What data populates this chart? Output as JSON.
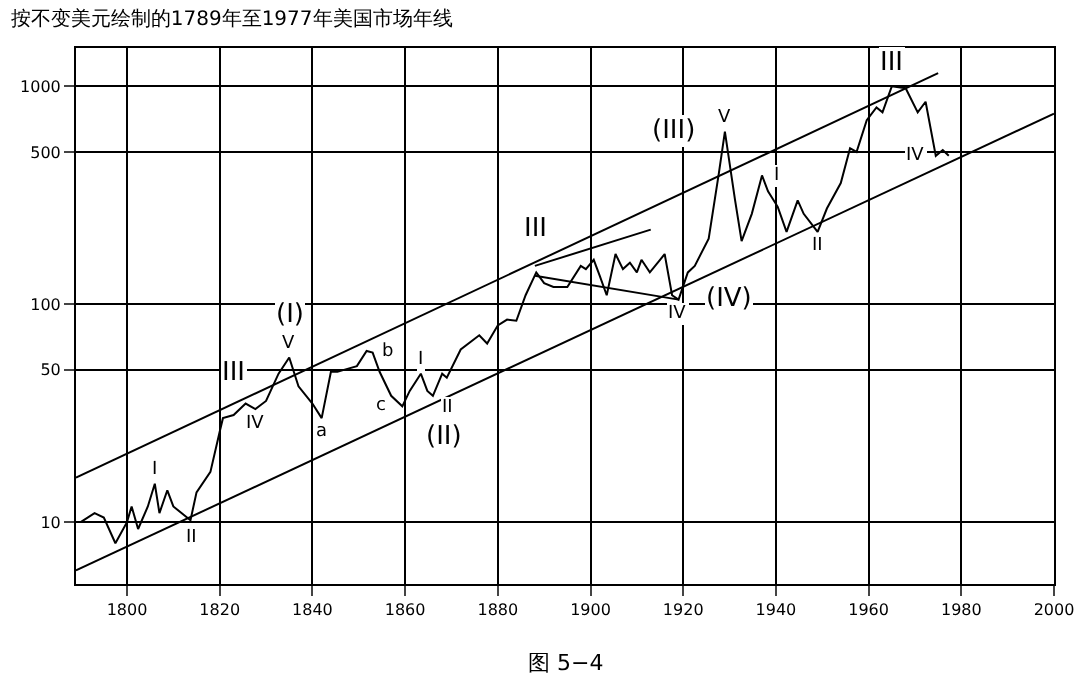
{
  "chart_data": {
    "type": "line",
    "title": "按不变美元绘制的1789年至1977年美国市场年线",
    "xlim": [
      1789,
      2000
    ],
    "xticks": [
      1800,
      1820,
      1840,
      1860,
      1880,
      1900,
      1920,
      1940,
      1960,
      1980,
      2000
    ],
    "ylim": [
      5.2,
      1500
    ],
    "yticks": [
      10,
      50,
      100,
      500,
      1000
    ],
    "log": true,
    "grid": true,
    "marker": "none",
    "line_style": "solid",
    "series": [
      {
        "color": "#000000",
        "x": [
          1790,
          1793,
          1795,
          1797.5,
          1800,
          1801,
          1802.4,
          1804.5,
          1806,
          1807,
          1808.7,
          1810,
          1813.7,
          1815,
          1818,
          1820,
          1820.7,
          1823,
          1825.6,
          1827.7,
          1830,
          1832.7,
          1835,
          1837,
          1840,
          1842,
          1844,
          1845.4,
          1846.8,
          1849.6,
          1851.7,
          1853,
          1854.5,
          1857,
          1859.4,
          1861,
          1863.4,
          1864.8,
          1866,
          1868,
          1869,
          1872,
          1876,
          1877.7,
          1880,
          1882,
          1884,
          1886,
          1888.3,
          1890,
          1892,
          1895,
          1897.9,
          1899,
          1900.7,
          1902,
          1903.5,
          1905.4,
          1907,
          1908.5,
          1910,
          1911,
          1912.8,
          1915,
          1916,
          1917.6,
          1919,
          1921,
          1922.5,
          1925.5,
          1927.7,
          1929,
          1931.2,
          1932.6,
          1934.8,
          1937,
          1938.3,
          1940.4,
          1942.3,
          1944.7,
          1946,
          1949,
          1951,
          1954,
          1956,
          1957.4,
          1959.6,
          1961.7,
          1963,
          1965,
          1968,
          1970.6,
          1972.3,
          1974.5,
          1976,
          1977.3
        ],
        "values": [
          10,
          11,
          10.5,
          8,
          10,
          11.8,
          9.3,
          11.8,
          15,
          11,
          14,
          11.8,
          10.2,
          13.7,
          17,
          26,
          30,
          31,
          35,
          33,
          36,
          48,
          57,
          42,
          35,
          30,
          49,
          49,
          50,
          52,
          61,
          60,
          49,
          38,
          34,
          40,
          48,
          40,
          38,
          48,
          46,
          62,
          72,
          66,
          80,
          85,
          84,
          110,
          140,
          125,
          120,
          120,
          150,
          145,
          160,
          135,
          110,
          170,
          145,
          155,
          140,
          160,
          140,
          160,
          170,
          110,
          105,
          140,
          150,
          200,
          400,
          620,
          300,
          195,
          260,
          390,
          330,
          280,
          215,
          300,
          260,
          215,
          275,
          360,
          520,
          500,
          700,
          800,
          760,
          1000,
          980,
          760,
          850,
          480,
          510,
          480
        ]
      },
      {
        "color": "#000000",
        "x": [
          1789,
          1975
        ],
        "values": [
          16,
          1150
        ]
      },
      {
        "color": "#000000",
        "x": [
          1789,
          2000
        ],
        "values": [
          6,
          750
        ]
      },
      {
        "color": "#000000",
        "x": [
          1888,
          1913
        ],
        "values": [
          150,
          220
        ]
      },
      {
        "color": "#000000",
        "x": [
          1888,
          1919
        ],
        "values": [
          135,
          105
        ]
      }
    ],
    "annotations": [
      {
        "text": "I",
        "x": 1806,
        "y": 15
      },
      {
        "text": "II",
        "x": 1813.7,
        "y": 10.2
      },
      {
        "text": "III",
        "x": 1823,
        "y": 31
      },
      {
        "text": "IV",
        "x": 1827.7,
        "y": 33
      },
      {
        "text": "V",
        "x": 1835,
        "y": 57
      },
      {
        "text": "(I)",
        "x": 1835,
        "y": 57
      },
      {
        "text": "a",
        "x": 1842,
        "y": 30
      },
      {
        "text": "b",
        "x": 1851.7,
        "y": 61
      },
      {
        "text": "c",
        "x": 1859.4,
        "y": 34
      },
      {
        "text": "(II)",
        "x": 1859.4,
        "y": 34
      },
      {
        "text": "I",
        "x": 1863.4,
        "y": 48
      },
      {
        "text": "II",
        "x": 1866,
        "y": 38
      },
      {
        "text": "III",
        "x": 1888.3,
        "y": 140
      },
      {
        "text": "IV",
        "x": 1919,
        "y": 105
      },
      {
        "text": "(IV)",
        "x": 1919,
        "y": 105
      },
      {
        "text": "V",
        "x": 1929,
        "y": 620
      },
      {
        "text": "(III)",
        "x": 1929,
        "y": 620
      },
      {
        "text": "I",
        "x": 1937,
        "y": 390
      },
      {
        "text": "II",
        "x": 1949,
        "y": 215
      },
      {
        "text": "III",
        "x": 1965,
        "y": 1000
      },
      {
        "text": "IV",
        "x": 1974.5,
        "y": 480
      },
      "图 5−4"
    ]
  }
}
